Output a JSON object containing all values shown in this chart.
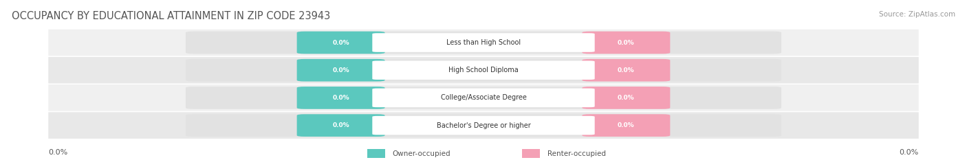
{
  "title": "OCCUPANCY BY EDUCATIONAL ATTAINMENT IN ZIP CODE 23943",
  "source": "Source: ZipAtlas.com",
  "categories": [
    "Less than High School",
    "High School Diploma",
    "College/Associate Degree",
    "Bachelor's Degree or higher"
  ],
  "owner_values": [
    0.0,
    0.0,
    0.0,
    0.0
  ],
  "renter_values": [
    0.0,
    0.0,
    0.0,
    0.0
  ],
  "owner_color": "#5bc8be",
  "renter_color": "#f4a0b5",
  "row_bg_light": "#f0f0f0",
  "row_bg_dark": "#e8e8e8",
  "full_bar_color": "#e2e2e2",
  "owner_label": "Owner-occupied",
  "renter_label": "Renter-occupied",
  "title_fontsize": 10.5,
  "source_fontsize": 7.5,
  "label_fontsize": 7.5,
  "tick_fontsize": 8,
  "background_color": "#ffffff",
  "left_tick_label": "0.0%",
  "right_tick_label": "0.0%"
}
